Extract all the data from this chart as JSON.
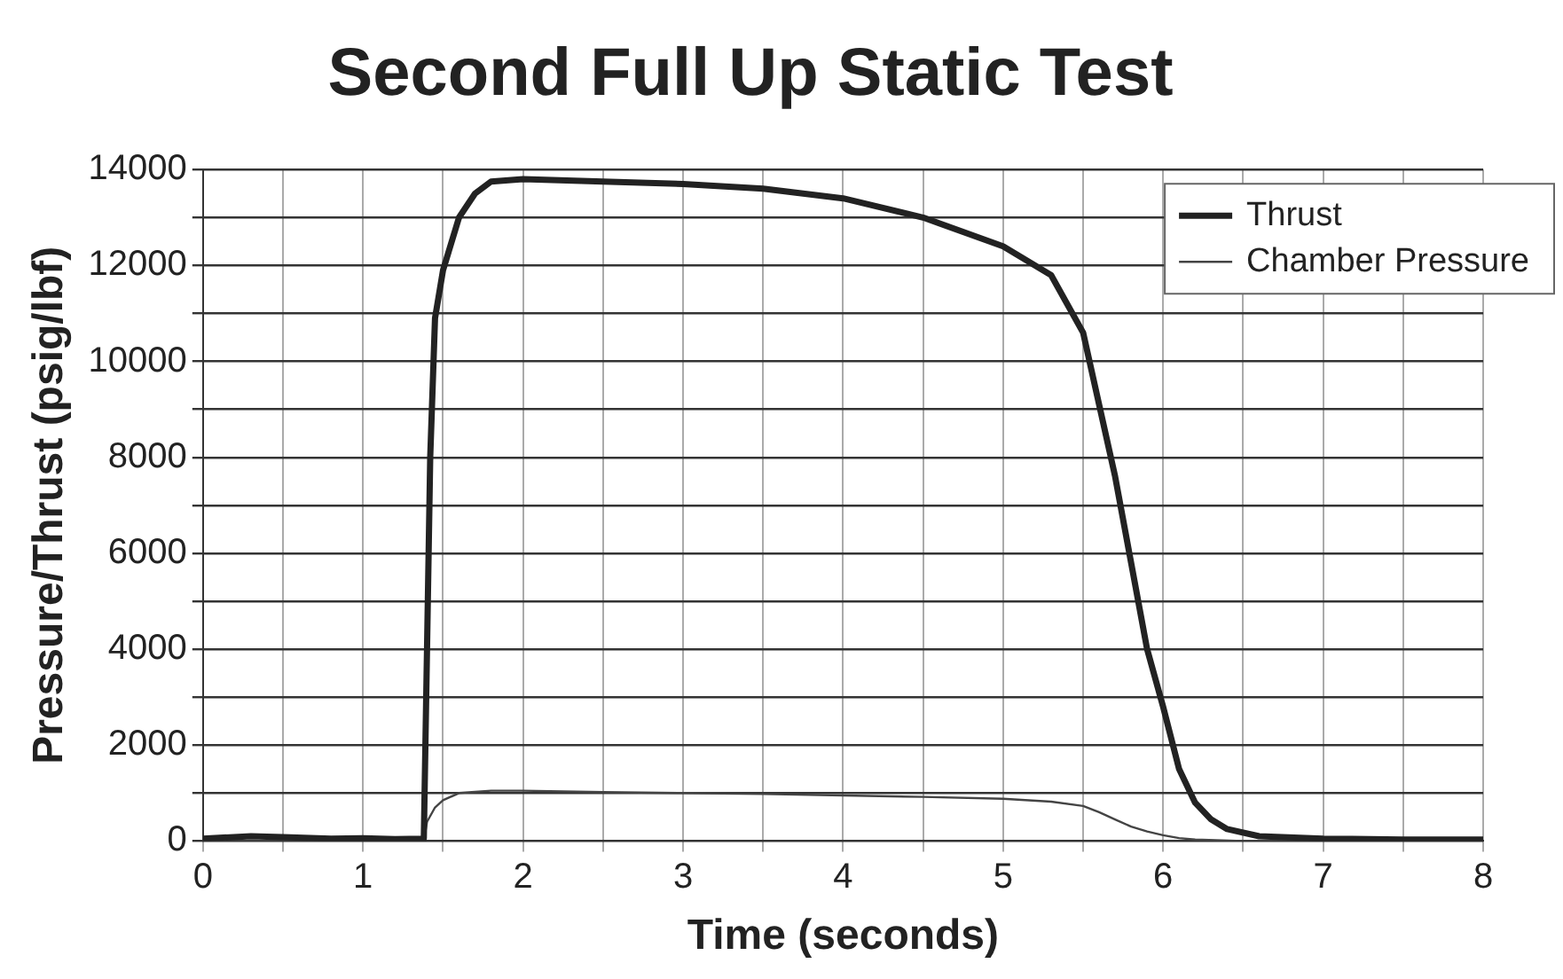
{
  "chart_data": {
    "type": "line",
    "title": "Second Full Up Static Test",
    "xlabel": "Time (seconds)",
    "ylabel": "Pressure/Thrust (psig/lbf)",
    "xlim": [
      0,
      8
    ],
    "ylim": [
      0,
      14000
    ],
    "xticks": [
      0,
      {
        "value": 0.5,
        "label": null
      },
      1,
      {
        "value": 1.5,
        "label": null
      },
      2,
      {
        "value": 2.5,
        "label": null
      },
      3,
      {
        "value": 3.5,
        "label": null
      },
      4,
      {
        "value": 4.5,
        "label": null
      },
      5,
      {
        "value": 5.5,
        "label": null
      },
      6,
      {
        "value": 6.5,
        "label": null
      },
      7,
      {
        "value": 7.5,
        "label": null
      },
      8
    ],
    "yticks": [
      0,
      {
        "value": 1000,
        "label": null
      },
      2000,
      {
        "value": 3000,
        "label": null
      },
      4000,
      {
        "value": 5000,
        "label": null
      },
      6000,
      {
        "value": 7000,
        "label": null
      },
      8000,
      {
        "value": 9000,
        "label": null
      },
      10000,
      {
        "value": 11000,
        "label": null
      },
      12000,
      {
        "value": 13000,
        "label": null
      },
      14000
    ],
    "grid": true,
    "legend": "top right",
    "marker": "none",
    "line_style": "solid",
    "series": [
      {
        "name": "Thrust",
        "color": "#222222",
        "x": [
          0,
          0.3,
          0.5,
          0.8,
          1.0,
          1.2,
          1.38,
          1.4,
          1.42,
          1.45,
          1.5,
          1.6,
          1.7,
          1.8,
          2.0,
          2.5,
          3.0,
          3.5,
          4.0,
          4.5,
          5.0,
          5.3,
          5.5,
          5.6,
          5.7,
          5.8,
          5.9,
          6.0,
          6.1,
          6.2,
          6.3,
          6.4,
          6.6,
          7.0,
          7.5,
          8.0
        ],
        "values": [
          50,
          100,
          80,
          50,
          60,
          40,
          50,
          4000,
          8000,
          10900,
          11900,
          13000,
          13500,
          13750,
          13800,
          13750,
          13700,
          13600,
          13400,
          13000,
          12400,
          11800,
          10600,
          9100,
          7600,
          5800,
          4000,
          2800,
          1500,
          800,
          450,
          250,
          100,
          50,
          30,
          30
        ]
      },
      {
        "name": "Chamber Pressure",
        "color": "#444444",
        "x": [
          0,
          1.0,
          1.38,
          1.4,
          1.45,
          1.5,
          1.6,
          1.8,
          2.0,
          2.5,
          3.0,
          3.5,
          4.0,
          4.5,
          5.0,
          5.3,
          5.5,
          5.6,
          5.7,
          5.8,
          5.9,
          6.0,
          6.1,
          6.2,
          6.5,
          7.0,
          8.0
        ],
        "values": [
          0,
          0,
          0,
          400,
          700,
          850,
          1000,
          1050,
          1050,
          1020,
          1000,
          980,
          950,
          920,
          880,
          820,
          730,
          600,
          450,
          300,
          200,
          120,
          60,
          30,
          0,
          0,
          0
        ]
      }
    ]
  }
}
